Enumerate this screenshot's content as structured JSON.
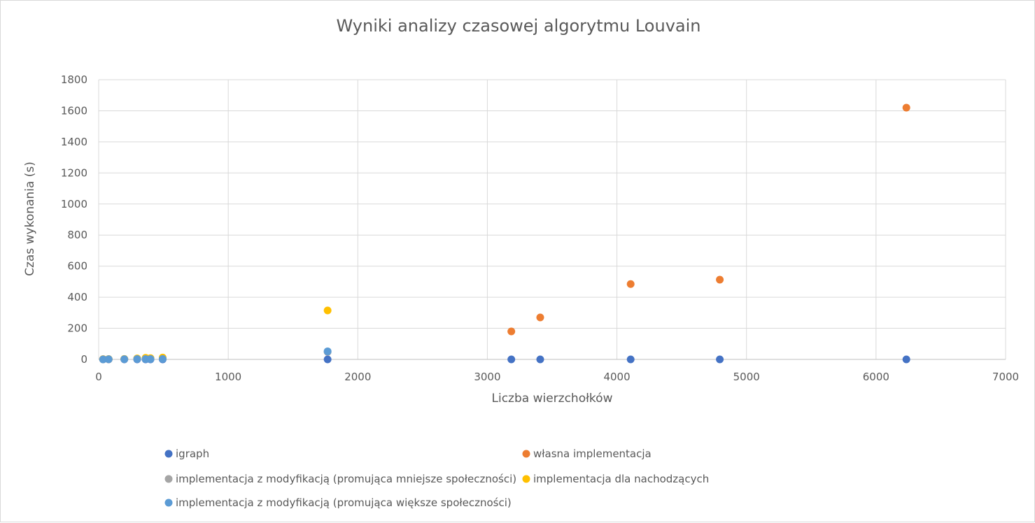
{
  "chart_data": {
    "type": "scatter",
    "title": "Wyniki analizy czasowej algorytmu Louvain",
    "xlabel": "Liczba wierzchołków",
    "ylabel": "Czas wykonania (s)",
    "xlim": [
      0,
      7000
    ],
    "ylim": [
      0,
      1800
    ],
    "xticks": [
      0,
      1000,
      2000,
      3000,
      4000,
      5000,
      6000,
      7000
    ],
    "yticks": [
      0,
      200,
      400,
      600,
      800,
      1000,
      1200,
      1400,
      1600,
      1800
    ],
    "x_tick_labels": [
      "0",
      "1000",
      "2000",
      "3000",
      "4000",
      "5000",
      "6000",
      "7000"
    ],
    "y_tick_labels": [
      "0",
      "200",
      "400",
      "600",
      "800",
      "1000",
      "1200",
      "1400",
      "1600",
      "1800"
    ],
    "grid": true,
    "legend_position": "bottom",
    "series": [
      {
        "name": "igraph",
        "color": "#4472c4",
        "points": [
          [
            34,
            0
          ],
          [
            77,
            0
          ],
          [
            198,
            0
          ],
          [
            297,
            0
          ],
          [
            362,
            0
          ],
          [
            400,
            0
          ],
          [
            494,
            0
          ],
          [
            1767,
            0
          ],
          [
            3185,
            0
          ],
          [
            3408,
            0
          ],
          [
            4106,
            0
          ],
          [
            4794,
            0
          ],
          [
            6234,
            0
          ]
        ]
      },
      {
        "name": "własna implementacja",
        "color": "#ed7d31",
        "points": [
          [
            34,
            1
          ],
          [
            77,
            1
          ],
          [
            198,
            2
          ],
          [
            297,
            3
          ],
          [
            3185,
            180
          ],
          [
            3408,
            270
          ],
          [
            4106,
            485
          ],
          [
            4794,
            513
          ],
          [
            6234,
            1620
          ]
        ]
      },
      {
        "name": "implementacja z modyfikacją (promująca mniejsze społeczności)",
        "color": "#a5a5a5",
        "points": [
          [
            34,
            1
          ],
          [
            77,
            1
          ],
          [
            198,
            2
          ],
          [
            297,
            3
          ],
          [
            362,
            4
          ],
          [
            400,
            4
          ],
          [
            494,
            5
          ],
          [
            1767,
            48
          ]
        ]
      },
      {
        "name": "implementacja dla nachodzących",
        "color": "#ffc000",
        "points": [
          [
            34,
            1
          ],
          [
            77,
            2
          ],
          [
            198,
            3
          ],
          [
            297,
            6
          ],
          [
            362,
            10
          ],
          [
            400,
            8
          ],
          [
            494,
            12
          ],
          [
            1767,
            315
          ]
        ]
      },
      {
        "name": "implementacja z modyfikacją (promująca większe społeczności)",
        "color": "#5b9bd5",
        "points": [
          [
            34,
            0
          ],
          [
            77,
            1
          ],
          [
            198,
            1
          ],
          [
            297,
            2
          ],
          [
            362,
            2
          ],
          [
            400,
            2
          ],
          [
            494,
            3
          ],
          [
            1767,
            52
          ]
        ]
      }
    ]
  }
}
